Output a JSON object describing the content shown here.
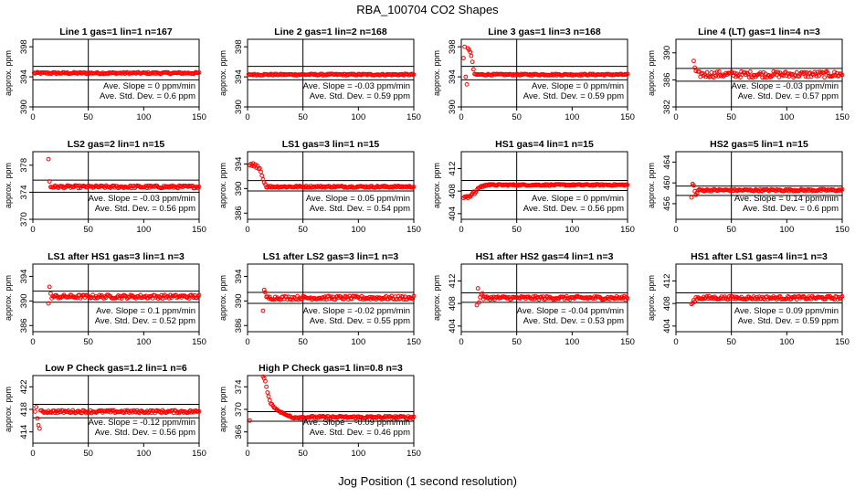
{
  "figure": {
    "title": "RBA_100704  CO2 Shapes",
    "xlabel": "Jog Position (1 second resolution)"
  },
  "colors": {
    "points": "#ff0000",
    "axes": "#000000",
    "background": "#ffffff"
  },
  "chart_data": [
    {
      "type": "scatter",
      "title": "Line 1 gas=1 lin=1 n=167",
      "ylabel": "approx. ppm",
      "xlim": [
        0,
        150
      ],
      "ylim": [
        390,
        399
      ],
      "yticks": [
        390,
        394,
        398
      ],
      "xticks": [
        0,
        50,
        100,
        150
      ],
      "hlines": [
        393.6,
        395.4
      ],
      "vline": 50,
      "slope_text": "Ave. Slope = 0  ppm/min",
      "std_text": "Ave. Std. Dev. = 0.6  ppm",
      "profile": {
        "base": 394.5,
        "noise": 0.12,
        "start": 1,
        "early": []
      }
    },
    {
      "type": "scatter",
      "title": "Line 2 gas=1 lin=2 n=168",
      "ylabel": "approx. ppm",
      "xlim": [
        0,
        150
      ],
      "ylim": [
        390,
        399
      ],
      "yticks": [
        390,
        394,
        398
      ],
      "xticks": [
        0,
        50,
        100,
        150
      ],
      "hlines": [
        393.6,
        395.4
      ],
      "vline": 50,
      "slope_text": "Ave. Slope = -0.03  ppm/min",
      "std_text": "Ave. Std. Dev. = 0.59  ppm",
      "profile": {
        "base": 394.3,
        "noise": 0.1,
        "start": 1,
        "early": []
      }
    },
    {
      "type": "scatter",
      "title": "Line 3 gas=1 lin=3 n=168",
      "ylabel": "approx. ppm",
      "xlim": [
        0,
        150
      ],
      "ylim": [
        390,
        399
      ],
      "yticks": [
        390,
        394,
        398
      ],
      "xticks": [
        0,
        50,
        100,
        150
      ],
      "hlines": [
        393.6,
        395.4
      ],
      "vline": 50,
      "slope_text": "Ave. Slope = 0  ppm/min",
      "std_text": "Ave. Std. Dev. = 0.59  ppm",
      "profile": {
        "base": 394.3,
        "noise": 0.1,
        "start": 12,
        "early": [
          [
            2,
            396.5
          ],
          [
            3,
            398
          ],
          [
            4,
            394
          ],
          [
            5,
            393
          ],
          [
            6,
            397.8
          ],
          [
            7,
            397.6
          ],
          [
            8,
            397.3
          ],
          [
            9,
            396.8
          ],
          [
            10,
            396
          ],
          [
            11,
            395
          ]
        ]
      }
    },
    {
      "type": "scatter",
      "title": "Line 4 (LT) gas=1 lin=4 n=3",
      "ylabel": "approx. ppm",
      "xlim": [
        0,
        150
      ],
      "ylim": [
        382,
        392
      ],
      "yticks": [
        382,
        386,
        390
      ],
      "xticks": [
        0,
        50,
        100,
        150
      ],
      "hlines": [
        385.8,
        387.7
      ],
      "vline": 50,
      "slope_text": "Ave. Slope = -0.03  ppm/min",
      "std_text": "Ave. Std. Dev. = 0.57  ppm",
      "profile": {
        "base": 386.8,
        "noise": 0.45,
        "start": 20,
        "early": [
          [
            16,
            388.8
          ],
          [
            17,
            387.8
          ],
          [
            18,
            387.3
          ]
        ]
      }
    },
    {
      "type": "scatter",
      "title": "LS2 gas=2 lin=1 n=15",
      "ylabel": "approx. ppm",
      "xlim": [
        0,
        150
      ],
      "ylim": [
        370,
        380
      ],
      "yticks": [
        370,
        374,
        378
      ],
      "xticks": [
        0,
        50,
        100,
        150
      ],
      "hlines": [
        374,
        375.8
      ],
      "vline": 50,
      "slope_text": "Ave. Slope = -0.03  ppm/min",
      "std_text": "Ave. Std. Dev. = 0.56  ppm",
      "profile": {
        "base": 374.8,
        "noise": 0.2,
        "start": 16,
        "early": [
          [
            14,
            378.9
          ],
          [
            15,
            375.6
          ]
        ]
      }
    },
    {
      "type": "scatter",
      "title": "LS1 gas=3 lin=1 n=15",
      "ylabel": "approx. ppm",
      "xlim": [
        0,
        150
      ],
      "ylim": [
        385,
        396
      ],
      "yticks": [
        386,
        390,
        394
      ],
      "xticks": [
        0,
        50,
        100,
        150
      ],
      "hlines": [
        389.6,
        391.3
      ],
      "vline": 50,
      "slope_text": "Ave. Slope = 0.05  ppm/min",
      "std_text": "Ave. Std. Dev. = 0.54  ppm",
      "profile": {
        "base": 390.3,
        "noise": 0.15,
        "start": 17,
        "early": [
          [
            2,
            393.8
          ],
          [
            3,
            394
          ],
          [
            4,
            393.7
          ],
          [
            5,
            394.1
          ],
          [
            6,
            393.6
          ],
          [
            7,
            393.9
          ],
          [
            8,
            393.4
          ],
          [
            9,
            393.7
          ],
          [
            10,
            393.2
          ],
          [
            11,
            393.3
          ],
          [
            12,
            392.7
          ],
          [
            13,
            392.1
          ],
          [
            14,
            391.5
          ],
          [
            15,
            391
          ],
          [
            16,
            390.7
          ]
        ]
      }
    },
    {
      "type": "scatter",
      "title": "HS1 gas=4 lin=1 n=15",
      "ylabel": "approx. ppm",
      "xlim": [
        0,
        150
      ],
      "ylim": [
        403,
        415
      ],
      "yticks": [
        404,
        408,
        412
      ],
      "xticks": [
        0,
        50,
        100,
        150
      ],
      "hlines": [
        408.1,
        409.9
      ],
      "vline": 50,
      "slope_text": "Ave. Slope = 0  ppm/min",
      "std_text": "Ave. Std. Dev. = 0.56  ppm",
      "profile": {
        "base": 409.1,
        "noise": 0.12,
        "start": 26,
        "early": [
          [
            2,
            406.8
          ],
          [
            3,
            407
          ],
          [
            4,
            406.9
          ],
          [
            5,
            407.1
          ],
          [
            6,
            406.8
          ],
          [
            7,
            407.1
          ],
          [
            8,
            407
          ],
          [
            9,
            407.3
          ],
          [
            10,
            407.6
          ],
          [
            11,
            407.9
          ],
          [
            12,
            407.5
          ],
          [
            13,
            407.8
          ],
          [
            14,
            408.2
          ],
          [
            15,
            408.5
          ],
          [
            16,
            408.6
          ],
          [
            17,
            408.7
          ],
          [
            18,
            408.9
          ],
          [
            19,
            408.7
          ],
          [
            20,
            409
          ],
          [
            21,
            408.9
          ],
          [
            22,
            409.1
          ],
          [
            23,
            409
          ],
          [
            24,
            409.1
          ],
          [
            25,
            409.2
          ]
        ]
      }
    },
    {
      "type": "scatter",
      "title": "HS2 gas=5 lin=1 n=15",
      "ylabel": "approx. ppm",
      "xlim": [
        0,
        150
      ],
      "ylim": [
        453,
        466
      ],
      "yticks": [
        456,
        460,
        464
      ],
      "xticks": [
        0,
        50,
        100,
        150
      ],
      "hlines": [
        457.6,
        459.4
      ],
      "vline": 50,
      "slope_text": "Ave. Slope = 0.14  ppm/min",
      "std_text": "Ave. Std. Dev. = 0.6  ppm",
      "profile": {
        "base": 458.6,
        "noise": 0.2,
        "start": 20,
        "early": [
          [
            14,
            457.2
          ],
          [
            15,
            459.8
          ],
          [
            16,
            459.5
          ],
          [
            17,
            458.4
          ],
          [
            18,
            457.7
          ],
          [
            19,
            458.1
          ]
        ]
      }
    },
    {
      "type": "scatter",
      "title": "LS1 after HS1 gas=3 lin=1 n=3",
      "ylabel": "approx. ppm",
      "xlim": [
        0,
        150
      ],
      "ylim": [
        385,
        396
      ],
      "yticks": [
        386,
        390,
        394
      ],
      "xticks": [
        0,
        50,
        100,
        150
      ],
      "hlines": [
        389.8,
        391.6
      ],
      "vline": 50,
      "slope_text": "Ave. Slope = 0.1  ppm/min",
      "std_text": "Ave. Std. Dev. = 0.52  ppm",
      "profile": {
        "base": 390.7,
        "noise": 0.3,
        "start": 17,
        "early": [
          [
            14,
            389.6
          ],
          [
            15,
            392.3
          ],
          [
            16,
            391.2
          ]
        ]
      }
    },
    {
      "type": "scatter",
      "title": "LS1 after LS2 gas=3 lin=1 n=3",
      "ylabel": "approx. ppm",
      "xlim": [
        0,
        150
      ],
      "ylim": [
        385,
        396
      ],
      "yticks": [
        386,
        390,
        394
      ],
      "xticks": [
        0,
        50,
        100,
        150
      ],
      "hlines": [
        389.6,
        391.4
      ],
      "vline": 50,
      "slope_text": "Ave. Slope = -0.02  ppm/min",
      "std_text": "Ave. Std. Dev. = 0.55  ppm",
      "profile": {
        "base": 390.5,
        "noise": 0.3,
        "start": 17,
        "early": [
          [
            14,
            388.4
          ],
          [
            15,
            391.8
          ],
          [
            16,
            391.4
          ]
        ]
      }
    },
    {
      "type": "scatter",
      "title": "HS1 after HS2 gas=4 lin=1 n=3",
      "ylabel": "approx. ppm",
      "xlim": [
        0,
        150
      ],
      "ylim": [
        403,
        415
      ],
      "yticks": [
        404,
        408,
        412
      ],
      "xticks": [
        0,
        50,
        100,
        150
      ],
      "hlines": [
        408.2,
        409.9
      ],
      "vline": 50,
      "slope_text": "Ave. Slope = -0.04  ppm/min",
      "std_text": "Ave. Std. Dev. = 0.53  ppm",
      "profile": {
        "base": 409,
        "noise": 0.3,
        "start": 20,
        "early": [
          [
            14,
            407.7
          ],
          [
            15,
            410.7
          ],
          [
            16,
            408.2
          ],
          [
            17,
            409.1
          ],
          [
            18,
            409.6
          ],
          [
            19,
            409.8
          ]
        ]
      }
    },
    {
      "type": "scatter",
      "title": "HS1 after LS1 gas=4 lin=1 n=3",
      "ylabel": "approx. ppm",
      "xlim": [
        0,
        150
      ],
      "ylim": [
        403,
        415
      ],
      "yticks": [
        404,
        408,
        412
      ],
      "xticks": [
        0,
        50,
        100,
        150
      ],
      "hlines": [
        408.1,
        409.9
      ],
      "vline": 50,
      "slope_text": "Ave. Slope = 0.09  ppm/min",
      "std_text": "Ave. Std. Dev. = 0.59  ppm",
      "profile": {
        "base": 409,
        "noise": 0.3,
        "start": 18,
        "early": [
          [
            14,
            407.9
          ],
          [
            15,
            408.1
          ],
          [
            16,
            408.6
          ],
          [
            17,
            408.3
          ]
        ]
      }
    },
    {
      "type": "scatter",
      "title": "Low P Check gas=1.2 lin=1 n=6",
      "ylabel": "approx. ppm",
      "xlim": [
        0,
        150
      ],
      "ylim": [
        412,
        424
      ],
      "yticks": [
        414,
        418,
        422
      ],
      "xticks": [
        0,
        50,
        100,
        150
      ],
      "hlines": [
        416.5,
        418.9
      ],
      "vline": 50,
      "slope_text": "Ave. Slope = -0.12  ppm/min",
      "std_text": "Ave. Std. Dev. = 0.56  ppm",
      "profile": {
        "base": 417.6,
        "noise": 0.25,
        "start": 8,
        "early": [
          [
            2,
            417.6
          ],
          [
            3,
            418.4
          ],
          [
            4,
            416.4
          ],
          [
            5,
            415.2
          ],
          [
            6,
            414.6
          ],
          [
            7,
            417.8
          ]
        ]
      }
    },
    {
      "type": "scatter",
      "title": "High P Check gas=1 lin=0.8 n=3",
      "ylabel": "approx. ppm",
      "xlim": [
        0,
        150
      ],
      "ylim": [
        364,
        376
      ],
      "yticks": [
        366,
        370,
        374
      ],
      "xticks": [
        0,
        50,
        100,
        150
      ],
      "hlines": [
        367.9,
        369.6
      ],
      "vline": 50,
      "slope_text": "Ave. Slope = -0.09  ppm/min",
      "std_text": "Ave. Std. Dev. = 0.46  ppm",
      "profile": {
        "base": 368.6,
        "noise": 0.22,
        "start": 40,
        "early": [
          [
            2,
            368
          ],
          [
            14,
            375.8
          ],
          [
            15,
            375.5
          ],
          [
            16,
            375
          ],
          [
            17,
            374
          ],
          [
            18,
            373
          ],
          [
            19,
            372.3
          ],
          [
            20,
            371.6
          ],
          [
            21,
            371
          ],
          [
            22,
            370.9
          ],
          [
            23,
            370.6
          ],
          [
            24,
            370.3
          ],
          [
            25,
            370.2
          ],
          [
            26,
            370
          ],
          [
            27,
            369.9
          ],
          [
            28,
            369.7
          ],
          [
            29,
            369.6
          ],
          [
            30,
            369.4
          ],
          [
            31,
            369.5
          ],
          [
            32,
            369.3
          ],
          [
            33,
            369.2
          ],
          [
            34,
            369.1
          ],
          [
            35,
            369
          ],
          [
            36,
            368.9
          ],
          [
            37,
            368.8
          ],
          [
            38,
            368.9
          ],
          [
            39,
            368.7
          ]
        ]
      }
    }
  ]
}
